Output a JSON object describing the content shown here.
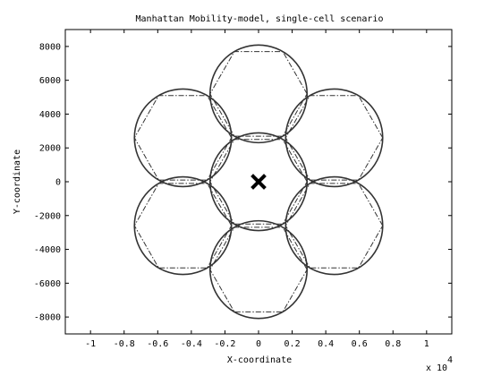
{
  "chart_data": {
    "type": "scatter",
    "title": "Manhattan Mobility-model, single-cell scenario",
    "xlabel": "X-coordinate",
    "ylabel": "Y-coordinate",
    "x_exponent_label": "x 10",
    "x_exponent_power": "4",
    "xlim": [
      -1.15,
      1.15
    ],
    "ylim": [
      -9000,
      9000
    ],
    "xscale_factor": 10000,
    "x_ticks": [
      -1,
      -0.8,
      -0.6,
      -0.4,
      -0.2,
      0,
      0.2,
      0.4,
      0.6,
      0.8,
      1
    ],
    "x_tick_labels": [
      "-1",
      "-0.8",
      "-0.6",
      "-0.4",
      "-0.2",
      "0",
      "0.2",
      "0.4",
      "0.6",
      "0.8",
      "1"
    ],
    "y_ticks": [
      -8000,
      -6000,
      -4000,
      -2000,
      0,
      2000,
      4000,
      6000,
      8000
    ],
    "y_tick_labels": [
      "-8000",
      "-6000",
      "-4000",
      "-2000",
      "0",
      "2000",
      "4000",
      "6000",
      "8000"
    ],
    "grid": false,
    "cell_radius": 2887,
    "base_station": {
      "x": 0,
      "y": 0,
      "marker": "x"
    },
    "cells": [
      {
        "x": 0,
        "y": 0
      },
      {
        "x": 0,
        "y": 5196
      },
      {
        "x": 0,
        "y": -5196
      },
      {
        "x": 4500,
        "y": 2598
      },
      {
        "x": 4500,
        "y": -2598
      },
      {
        "x": -4500,
        "y": 2598
      },
      {
        "x": -4500,
        "y": -2598
      }
    ],
    "colors": {
      "line": "#333333",
      "marker": "#000000",
      "axis": "#000000"
    }
  }
}
